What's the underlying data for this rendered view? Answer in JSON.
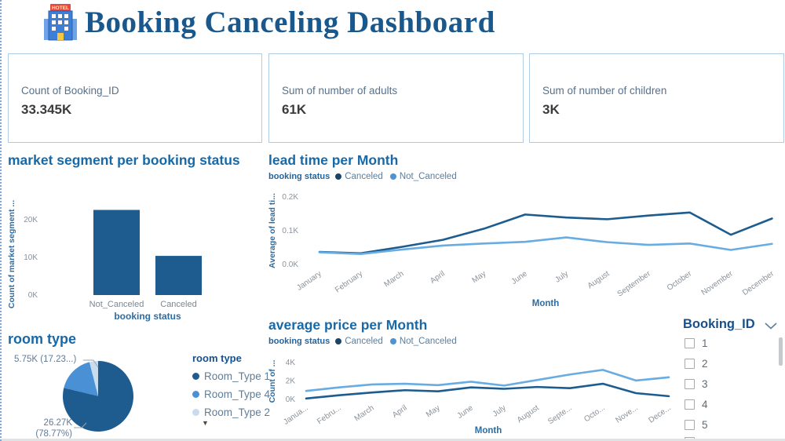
{
  "header": {
    "title": "Booking Canceling Dashboard",
    "hotel_sign": "HOTEL"
  },
  "cards": [
    {
      "label": "Count of Booking_ID",
      "value": "33.345K"
    },
    {
      "label": "Sum of number of adults",
      "value": "61K"
    },
    {
      "label": "Sum of number of children",
      "value": "3K"
    }
  ],
  "colors": {
    "dark_blue": "#1e5c90",
    "canceled_line": "#1d5c8f",
    "notcanceled_line": "#68ace2",
    "canceled_dot": "#1d4466",
    "notcanceled_dot": "#4f93d1",
    "room_palette": [
      "#1e5c90",
      "#4a90d5",
      "#c7dcee"
    ],
    "tick": "#8a9199",
    "axis_title": "#2c6ca3",
    "section_title": "#1769a8",
    "card_border": "#aecbe3"
  },
  "chart_data": [
    {
      "id": "market_segment",
      "type": "bar",
      "title": "market segment per booking status",
      "xlabel": "booking status",
      "ylabel": "Count of market segment ...",
      "categories": [
        "Not_Canceled",
        "Canceled"
      ],
      "values": [
        22.6,
        10.4
      ],
      "unit": "K",
      "yticks": [
        0,
        10,
        20
      ],
      "ytick_labels": [
        "0K",
        "10K",
        "20K"
      ],
      "ylim": [
        0,
        24
      ]
    },
    {
      "id": "lead_time",
      "type": "line",
      "title": "lead time per Month",
      "legend_title": "booking status",
      "xlabel": "Month",
      "ylabel": "Average of lead ti...",
      "categories": [
        "January",
        "February",
        "March",
        "April",
        "May",
        "June",
        "July",
        "August",
        "September",
        "October",
        "November",
        "December"
      ],
      "yticks": [
        0,
        0.1,
        0.2
      ],
      "ytick_labels": [
        "0.0K",
        "0.1K",
        "0.2K"
      ],
      "ylim": [
        0,
        0.2
      ],
      "series": [
        {
          "name": "Canceled",
          "values": [
            0.037,
            0.033,
            0.052,
            0.073,
            0.106,
            0.148,
            0.139,
            0.134,
            0.145,
            0.154,
            0.088,
            0.136
          ]
        },
        {
          "name": "Not_Canceled",
          "values": [
            0.036,
            0.031,
            0.044,
            0.056,
            0.062,
            0.067,
            0.08,
            0.066,
            0.058,
            0.062,
            0.043,
            0.061
          ]
        }
      ]
    },
    {
      "id": "room_type",
      "type": "pie",
      "title": "room type",
      "legend_title": "room type",
      "slices": [
        {
          "label": "Room_Type 1",
          "pct": 78.77,
          "value_label": "26.27K",
          "pct_label": "(78.77%)"
        },
        {
          "label": "Room_Type 4",
          "pct": 17.23,
          "callout": "5.75K (17.23...)"
        },
        {
          "label": "Room_Type 2",
          "pct": 4.0
        }
      ]
    },
    {
      "id": "avg_price",
      "type": "line",
      "title": "average price per Month",
      "legend_title": "booking status",
      "xlabel": "Month",
      "ylabel": "Count of ...",
      "categories": [
        "Janua...",
        "Febru...",
        "March",
        "April",
        "May",
        "June",
        "July",
        "August",
        "Septe...",
        "Octo...",
        "Nove...",
        "Dece..."
      ],
      "yticks": [
        0,
        2,
        4
      ],
      "ytick_labels": [
        "0K",
        "2K",
        "4K"
      ],
      "ylim": [
        0,
        4.4
      ],
      "series": [
        {
          "name": "Canceled",
          "values": [
            0.1,
            0.45,
            0.75,
            1.0,
            0.88,
            1.3,
            1.15,
            1.35,
            1.22,
            1.7,
            0.68,
            0.35
          ]
        },
        {
          "name": "Not_Canceled",
          "values": [
            0.92,
            1.3,
            1.62,
            1.7,
            1.55,
            1.92,
            1.5,
            2.1,
            2.7,
            3.2,
            2.05,
            2.4
          ]
        }
      ]
    }
  ],
  "slicer": {
    "title": "Booking_ID",
    "items": [
      "1",
      "2",
      "3",
      "4",
      "5"
    ]
  }
}
